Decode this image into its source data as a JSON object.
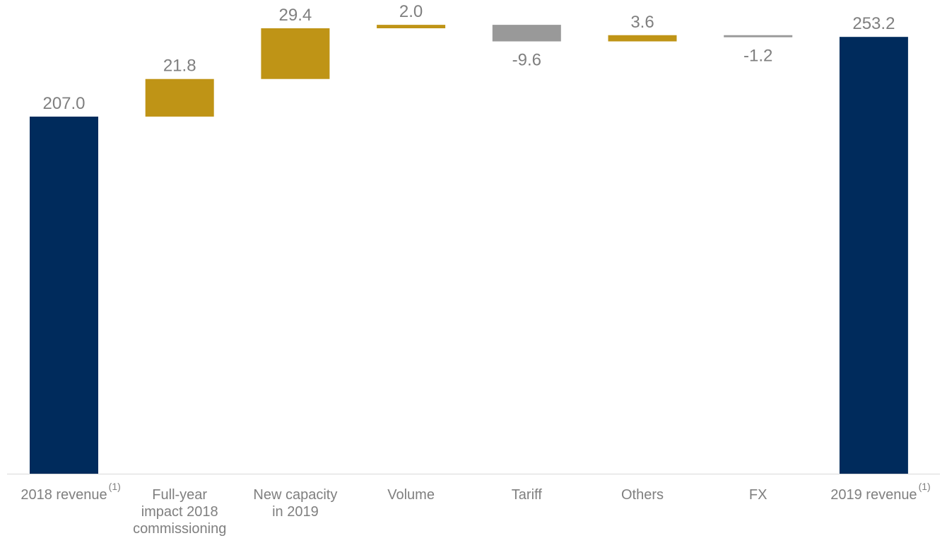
{
  "chart_data": {
    "type": "bar",
    "subtype": "waterfall",
    "categories": [
      {
        "lines": [
          "2018 revenue"
        ],
        "footnote": "(1)"
      },
      {
        "lines": [
          "Full-year",
          "impact 2018",
          "commissioning"
        ],
        "footnote": ""
      },
      {
        "lines": [
          "New capacity",
          "in 2019"
        ],
        "footnote": ""
      },
      {
        "lines": [
          "Volume"
        ],
        "footnote": ""
      },
      {
        "lines": [
          "Tariff"
        ],
        "footnote": ""
      },
      {
        "lines": [
          "Others"
        ],
        "footnote": ""
      },
      {
        "lines": [
          "FX"
        ],
        "footnote": ""
      },
      {
        "lines": [
          "2019 revenue"
        ],
        "footnote": "(1)"
      }
    ],
    "values": [
      207.0,
      21.8,
      29.4,
      2.0,
      -9.6,
      3.6,
      -1.2,
      253.2
    ],
    "labels": [
      "207.0",
      "21.8",
      "29.4",
      "2.0",
      "-9.6",
      "3.6",
      "-1.2",
      "253.2"
    ],
    "kinds": [
      "total",
      "increase",
      "increase",
      "increase",
      "decrease",
      "increase",
      "decrease",
      "total"
    ],
    "ylim": [
      0,
      262
    ],
    "grid": false,
    "legend": "none",
    "colors": {
      "total": "#002b5c",
      "increase": "#bf9416",
      "decrease": "#999999",
      "axis": "#d9d9d9",
      "text": "#7f7f7f"
    }
  }
}
